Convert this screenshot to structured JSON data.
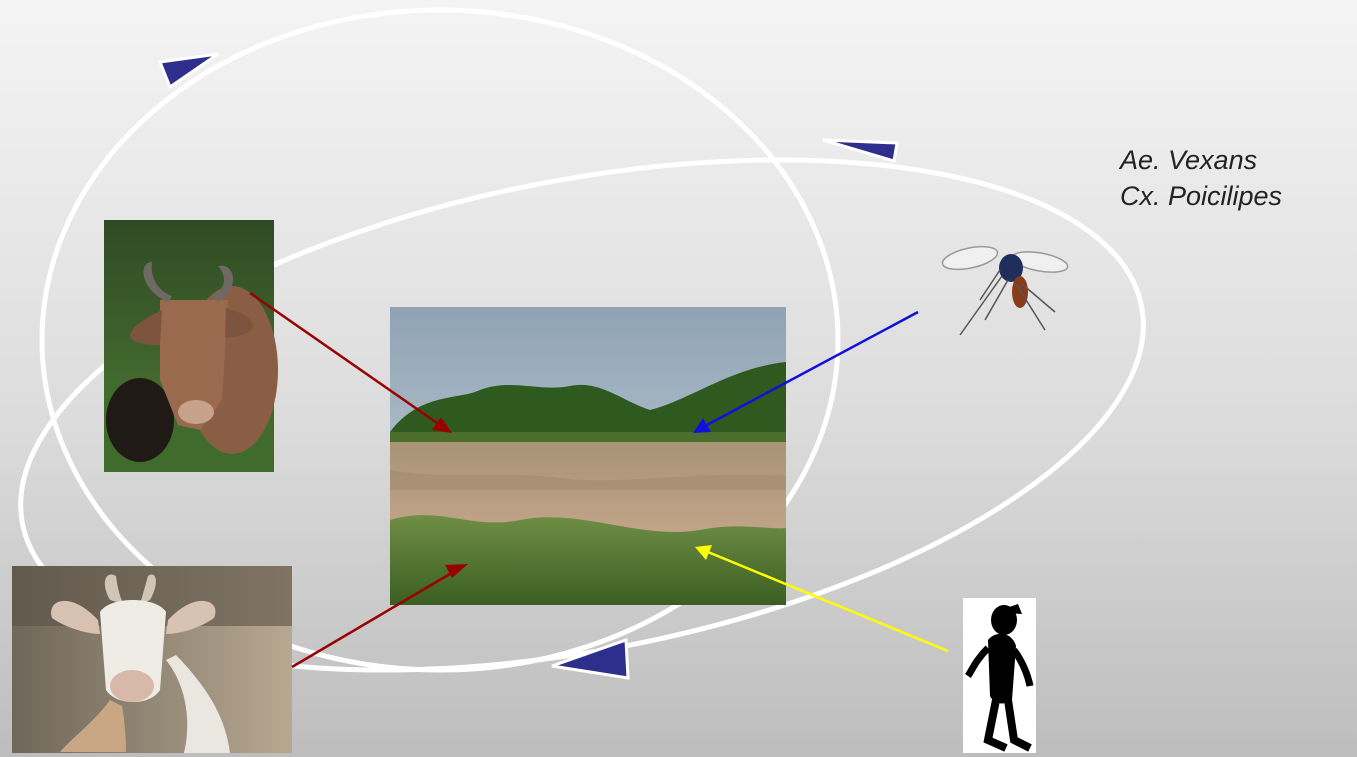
{
  "vectors": {
    "species": [
      "Ae. Vexans",
      "Cx. Poicilipes"
    ]
  },
  "colors": {
    "cycle_loop": "#ffffff",
    "direction_marker": "#2e2e8c",
    "livestock_arrow": "#990000",
    "mosquito_arrow": "#1010dd",
    "human_arrow": "#ffff00"
  },
  "images": {
    "cattle": "cattle-photo",
    "goat": "goat-photo",
    "pond": "pond-photo",
    "mosquito": "mosquito-clipart",
    "human": "human-silhouette"
  }
}
